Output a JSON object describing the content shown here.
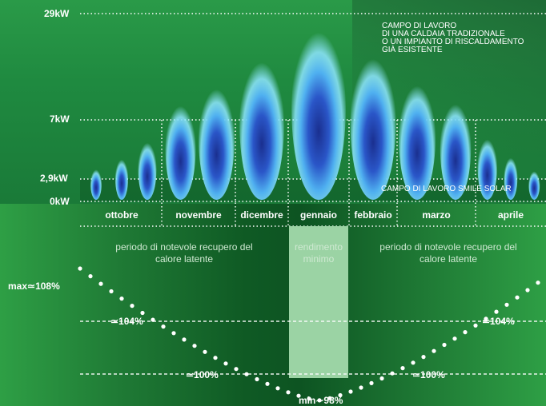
{
  "chart_data": {
    "type": "line",
    "power_axis": {
      "ticks": [
        "29kW",
        "7kW",
        "2,9kW",
        "0kW"
      ]
    },
    "months": [
      "ottobre",
      "novembre",
      "dicembre",
      "gennaio",
      "febbraio",
      "marzo",
      "aprile"
    ],
    "annotations": {
      "traditional": "CAMPO DI LAVORO\nDI UNA CALDAIA TRADIZIONALE\nO UN IMPIANTO DI RISCALDAMENTO\nGIÀ ESISTENTE",
      "smile": "CAMPO DI LAVORO SMILE SOLAR",
      "period_left": "periodo di notevole recupero del calore latente",
      "period_center": "rendimento minimo",
      "period_right": "periodo di notevole recupero del calore latente"
    },
    "efficiency_labels": {
      "max": "max≃108%",
      "left_104": "≃104%",
      "right_104": "≃104%",
      "left_100": "≃100%",
      "right_100": "≃100%",
      "min": "min∼98%"
    },
    "efficiency_curve": {
      "x": [
        0,
        1,
        2,
        3,
        4,
        5,
        6
      ],
      "y": [
        108,
        104,
        100,
        98,
        100,
        104,
        108
      ]
    },
    "flames": [
      {
        "month": "ottobre",
        "heights": [
          0.18,
          0.24,
          0.34
        ]
      },
      {
        "month": "novembre",
        "heights": [
          0.56,
          0.66
        ]
      },
      {
        "month": "dicembre",
        "heights": [
          0.82
        ]
      },
      {
        "month": "gennaio",
        "heights": [
          1.0
        ]
      },
      {
        "month": "febbraio",
        "heights": [
          0.84
        ]
      },
      {
        "month": "marzo",
        "heights": [
          0.68,
          0.57
        ]
      },
      {
        "month": "aprile",
        "heights": [
          0.36,
          0.25,
          0.17
        ]
      }
    ],
    "colors": {
      "background": "#1f8a40",
      "flame_core": "#1a3c9a",
      "flame_glow": "#7fe0ff",
      "center_band": "#9bd3a4"
    }
  }
}
